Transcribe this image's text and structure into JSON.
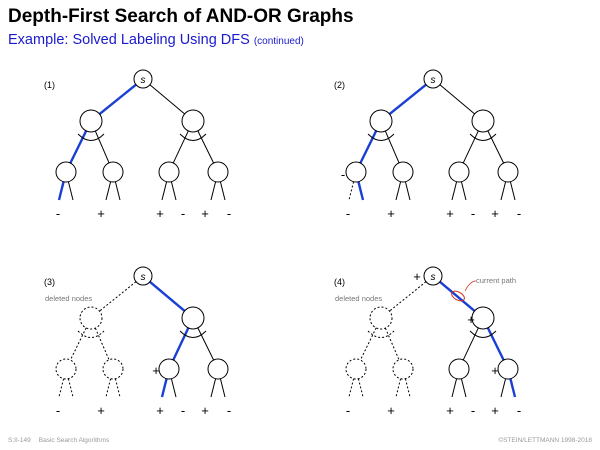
{
  "header": {
    "title": "Depth-First Search of AND-OR Graphs",
    "subtitle": "Example: Solved Labeling Using DFS",
    "subtitle_note": "(continued)"
  },
  "colors": {
    "path": "#1a3fd4",
    "node_stroke": "#000000",
    "annotation": "#d03020",
    "footer_text": "#999999"
  },
  "panels": [
    {
      "label": "(1)",
      "root_label": "s",
      "root_mark": "",
      "deleted_note": "",
      "current_path_note": "",
      "leaf_labels": [
        "-",
        "+",
        "+",
        "-",
        "+",
        "-"
      ],
      "node_marks": {}
    },
    {
      "label": "(2)",
      "root_label": "s",
      "root_mark": "",
      "deleted_note": "",
      "current_path_note": "",
      "leaf_labels": [
        "-",
        "+",
        "+",
        "-",
        "+",
        "-"
      ],
      "node_marks": {
        "L1": "-"
      }
    },
    {
      "label": "(3)",
      "root_label": "s",
      "root_mark": "",
      "deleted_note": "deleted nodes",
      "current_path_note": "",
      "leaf_labels": [
        "-",
        "+",
        "+",
        "-",
        "+",
        "-"
      ],
      "node_marks": {
        "R1": "+"
      }
    },
    {
      "label": "(4)",
      "root_label": "s",
      "root_mark": "+",
      "deleted_note": "deleted nodes",
      "current_path_note": "current path",
      "leaf_labels": [
        "-",
        "+",
        "+",
        "-",
        "+",
        "-"
      ],
      "node_marks": {
        "R": "+",
        "R2": "+"
      }
    }
  ],
  "footer": {
    "slide_id": "S:II-149",
    "course": "Basic Search Algorithms",
    "copyright": "©STEIN/LETTMANN 1998-2018"
  }
}
